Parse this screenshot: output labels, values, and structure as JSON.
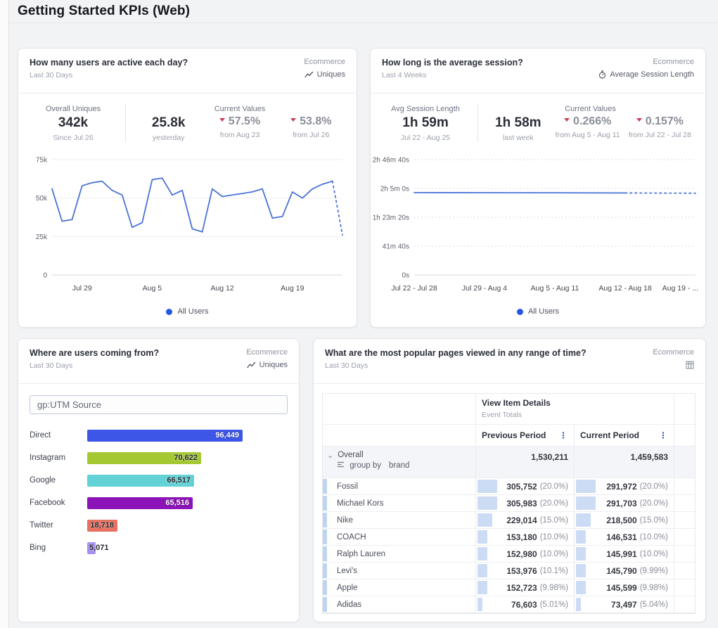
{
  "page": {
    "title": "Getting Started KPIs (Web)"
  },
  "colors": {
    "line_blue": "#4a72d8",
    "legend_blue": "#2457e6",
    "negative_red": "#cf3d57",
    "table_bar_blue": "#cbdcf4",
    "table_strip_blue": "#bdd5f1",
    "panel_background": "#ffffff",
    "page_background": "#f2f3f5"
  },
  "icons": {
    "uniques_metric": "line-chart-icon",
    "session_metric": "stopwatch-icon",
    "popular_pages_metric": "table-icon",
    "column_menu": "kebab-icon",
    "overall_expand": "chevron-down-icon",
    "group_by": "group-by-icon"
  },
  "panels": {
    "active_users": {
      "title": "How many users are active each day?",
      "range": "Last 30 Days",
      "source": "Ecommerce",
      "metric": "Uniques",
      "overall": {
        "label": "Overall Uniques",
        "value": "342k",
        "caption": "Since Jul 26"
      },
      "current_label": "Current Values",
      "current": [
        {
          "value": "25.8k",
          "caption": "yesterday",
          "direction": "none"
        },
        {
          "value": "57.5%",
          "caption": "from Aug 23",
          "direction": "down"
        },
        {
          "value": "53.8%",
          "caption": "from Jul 26",
          "direction": "down"
        }
      ],
      "legend": "All Users"
    },
    "avg_session": {
      "title": "How long is the average session?",
      "range": "Last 4 Weeks",
      "source": "Ecommerce",
      "metric": "Average Session Length",
      "overall": {
        "label": "Avg Session Length",
        "value": "1h 59m",
        "caption": "Jul 22 - Aug 25"
      },
      "current_label": "Current Values",
      "current": [
        {
          "value": "1h 58m",
          "caption": "last week",
          "direction": "none"
        },
        {
          "value": "0.266%",
          "caption": "from Aug 5 - Aug 11",
          "direction": "down"
        },
        {
          "value": "0.157%",
          "caption": "from Jul 22 - Jul 28",
          "direction": "down"
        }
      ],
      "legend": "All Users"
    },
    "utm_source": {
      "title": "Where are users coming from?",
      "range": "Last 30 Days",
      "source": "Ecommerce",
      "metric": "Uniques",
      "selector": "gp:UTM Source"
    },
    "popular_pages": {
      "title": "What are the most popular pages viewed in any range of time?",
      "range": "Last 30 Days",
      "source": "Ecommerce",
      "table": {
        "event_header": "View Item Details",
        "event_subheader": "Event Totals",
        "col_previous": "Previous Period",
        "col_current": "Current Period",
        "overall_row": {
          "name": "Overall",
          "group_by_label": "group by",
          "group_by_field": "brand",
          "previous": "1,530,211",
          "current": "1,459,583"
        },
        "rows": [
          {
            "name": "Fossil",
            "previous": "305,752",
            "previous_pct": "(20.0%)",
            "current": "291,972",
            "current_pct": "(20.0%)",
            "previous_bar": 20.0,
            "current_bar": 20.0
          },
          {
            "name": "Michael Kors",
            "previous": "305,983",
            "previous_pct": "(20.0%)",
            "current": "291,703",
            "current_pct": "(20.0%)",
            "previous_bar": 20.0,
            "current_bar": 20.0
          },
          {
            "name": "Nike",
            "previous": "229,014",
            "previous_pct": "(15.0%)",
            "current": "218,500",
            "current_pct": "(15.0%)",
            "previous_bar": 15.0,
            "current_bar": 15.0
          },
          {
            "name": "COACH",
            "previous": "153,180",
            "previous_pct": "(10.0%)",
            "current": "146,531",
            "current_pct": "(10.0%)",
            "previous_bar": 10.0,
            "current_bar": 10.0
          },
          {
            "name": "Ralph Lauren",
            "previous": "152,980",
            "previous_pct": "(10.0%)",
            "current": "145,991",
            "current_pct": "(10.0%)",
            "previous_bar": 10.0,
            "current_bar": 10.0
          },
          {
            "name": "Levi's",
            "previous": "153,976",
            "previous_pct": "(10.1%)",
            "current": "145,790",
            "current_pct": "(9.99%)",
            "previous_bar": 10.1,
            "current_bar": 9.99
          },
          {
            "name": "Apple",
            "previous": "152,723",
            "previous_pct": "(9.98%)",
            "current": "145,599",
            "current_pct": "(9.98%)",
            "previous_bar": 9.98,
            "current_bar": 9.98
          },
          {
            "name": "Adidas",
            "previous": "76,603",
            "previous_pct": "(5.01%)",
            "current": "73,497",
            "current_pct": "(5.04%)",
            "previous_bar": 5.01,
            "current_bar": 5.04
          }
        ]
      }
    }
  },
  "chart_data": [
    {
      "id": "active-users-line",
      "type": "line",
      "title": "How many users are active each day?",
      "ylabel": "Uniques",
      "ylim": [
        0,
        75000
      ],
      "grid": "solid",
      "legend_position": "bottom",
      "y_ticks": [
        {
          "value": 0,
          "label": "0"
        },
        {
          "value": 25000,
          "label": "25k"
        },
        {
          "value": 50000,
          "label": "50k"
        },
        {
          "value": 75000,
          "label": "75k"
        }
      ],
      "x_ticks": [
        {
          "index": 3,
          "label": "Jul 29"
        },
        {
          "index": 10,
          "label": "Aug 5"
        },
        {
          "index": 17,
          "label": "Aug 12"
        },
        {
          "index": 24,
          "label": "Aug 19"
        }
      ],
      "series": [
        {
          "name": "All Users",
          "color": "#4a72d8",
          "values": [
            56000,
            35000,
            36000,
            58000,
            60000,
            61000,
            55000,
            52000,
            31000,
            34000,
            62000,
            63000,
            52000,
            55000,
            30000,
            28000,
            56000,
            51000,
            52000,
            53000,
            54000,
            56000,
            37000,
            38000,
            54000,
            50000,
            56000,
            59000,
            61000,
            26000
          ]
        }
      ],
      "dashed_from_index": 28
    },
    {
      "id": "avg-session-line",
      "type": "line",
      "title": "How long is the average session?",
      "ylabel": "Average Session Length",
      "ylim": [
        0,
        10000
      ],
      "grid": "dashed",
      "legend_position": "bottom",
      "y_ticks": [
        {
          "value": 0,
          "label": "0s"
        },
        {
          "value": 2500,
          "label": "41m 40s"
        },
        {
          "value": 5000,
          "label": "1h 23m 20s"
        },
        {
          "value": 7500,
          "label": "2h 5m 0s"
        },
        {
          "value": 10000,
          "label": "2h 46m 40s"
        }
      ],
      "x_ticks": [
        {
          "index": 0,
          "label": "Jul 22 - Jul 28"
        },
        {
          "index": 1,
          "label": "Jul 29 - Aug 4"
        },
        {
          "index": 2,
          "label": "Aug 5 - Aug 11"
        },
        {
          "index": 3,
          "label": "Aug 12 - Aug 18"
        },
        {
          "index": 4,
          "label": "Aug 19 - ...",
          "anchor": "end"
        }
      ],
      "series": [
        {
          "name": "All Users",
          "color": "#4a72d8",
          "values": [
            7140,
            7135,
            7125,
            7110,
            7090
          ]
        }
      ],
      "dashed_from_index": 3
    },
    {
      "id": "utm-source-bars",
      "type": "bar",
      "orientation": "horizontal",
      "title": "Where are users coming from?",
      "categories": [
        "Direct",
        "Instagram",
        "Google",
        "Facebook",
        "Twitter",
        "Bing"
      ],
      "values": [
        96449,
        70622,
        66517,
        65516,
        18718,
        5071
      ],
      "value_labels": [
        "96,449",
        "70,622",
        "66,517",
        "65,516",
        "18,718",
        "5,071"
      ],
      "colors": [
        "#3d56e8",
        "#a4c832",
        "#63d2d6",
        "#8c13b9",
        "#e7705f",
        "#a88ff2"
      ],
      "label_style": [
        "light",
        "dark",
        "dark",
        "light",
        "dark",
        "dark-outside"
      ]
    },
    {
      "id": "popular-pages-table",
      "type": "table",
      "title": "What are the most popular pages viewed in any range of time?",
      "event": "View Item Details",
      "totals_label": "Event Totals",
      "columns": [
        "Previous Period",
        "Current Period"
      ],
      "overall": {
        "name": "Overall",
        "group_by": "brand",
        "previous": 1530211,
        "current": 1459583
      },
      "rows": [
        {
          "name": "Fossil",
          "previous": 305752,
          "previous_pct": 20.0,
          "current": 291972,
          "current_pct": 20.0
        },
        {
          "name": "Michael Kors",
          "previous": 305983,
          "previous_pct": 20.0,
          "current": 291703,
          "current_pct": 20.0
        },
        {
          "name": "Nike",
          "previous": 229014,
          "previous_pct": 15.0,
          "current": 218500,
          "current_pct": 15.0
        },
        {
          "name": "COACH",
          "previous": 153180,
          "previous_pct": 10.0,
          "current": 146531,
          "current_pct": 10.0
        },
        {
          "name": "Ralph Lauren",
          "previous": 152980,
          "previous_pct": 10.0,
          "current": 145991,
          "current_pct": 10.0
        },
        {
          "name": "Levi's",
          "previous": 153976,
          "previous_pct": 10.1,
          "current": 145790,
          "current_pct": 9.99
        },
        {
          "name": "Apple",
          "previous": 152723,
          "previous_pct": 9.98,
          "current": 145599,
          "current_pct": 9.98
        },
        {
          "name": "Adidas",
          "previous": 76603,
          "previous_pct": 5.01,
          "current": 73497,
          "current_pct": 5.04
        }
      ]
    }
  ]
}
